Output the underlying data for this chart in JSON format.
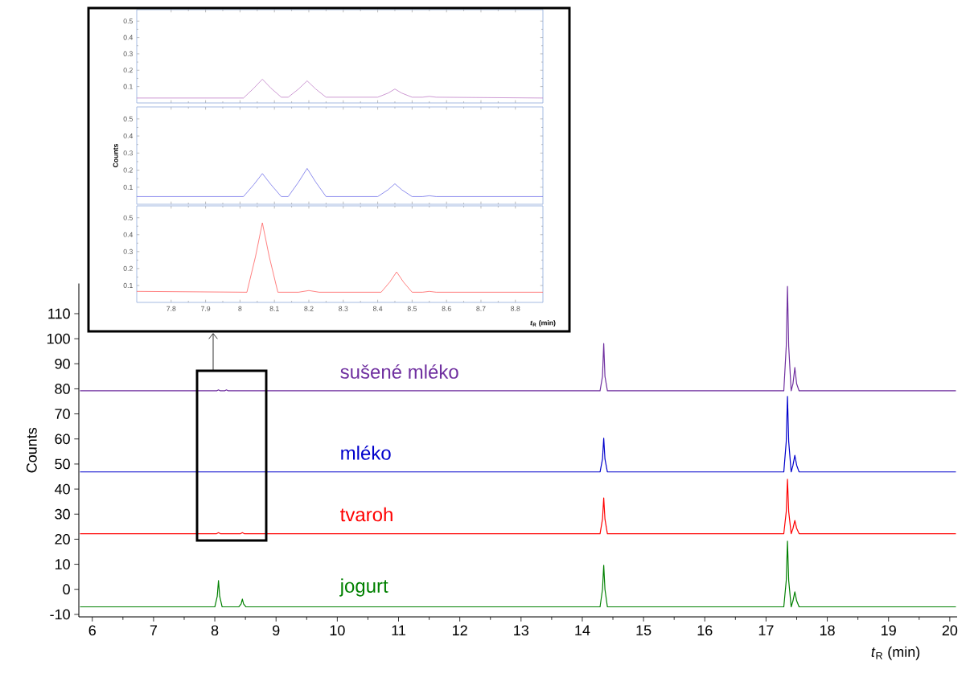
{
  "chart_data": [
    {
      "type": "line",
      "xlabel": "*t*$_{R}$ (min)",
      "ylabel": "Counts",
      "xlim": [
        5.78,
        20.12
      ],
      "ylim": [
        -11,
        122
      ],
      "xticks": [
        6,
        7,
        8,
        9,
        10,
        11,
        12,
        13,
        14,
        15,
        16,
        17,
        18,
        19,
        20
      ],
      "yticks": [
        -10,
        0,
        10,
        20,
        30,
        40,
        50,
        60,
        70,
        80,
        90,
        100,
        110
      ],
      "series": [
        {
          "name": "sušené mléko",
          "color": "#7030a0",
          "x": [
            5.8,
            8.03,
            8.06,
            8.09,
            8.16,
            8.19,
            8.22,
            14.29,
            14.33,
            14.35,
            14.37,
            14.41,
            17.29,
            17.33,
            17.35,
            17.37,
            17.41,
            17.44,
            17.47,
            17.5,
            17.54,
            20.1
          ],
          "values": [
            79.2,
            79.2,
            79.6,
            79.2,
            79.2,
            79.6,
            79.2,
            79.2,
            85,
            98.1,
            85,
            79.2,
            79.2,
            97,
            120.9,
            97,
            79.2,
            82,
            88.5,
            82,
            79.2,
            79.2
          ]
        },
        {
          "name": "mléko",
          "color": "#0000cc",
          "x": [
            5.8,
            14.29,
            14.33,
            14.35,
            14.37,
            14.41,
            17.29,
            17.33,
            17.35,
            17.37,
            17.41,
            17.44,
            17.47,
            17.5,
            17.54,
            20.1
          ],
          "values": [
            46.8,
            46.8,
            52,
            60.3,
            52,
            46.8,
            46.8,
            59,
            77.0,
            59,
            46.8,
            49.5,
            53.5,
            49.5,
            46.8,
            46.8
          ]
        },
        {
          "name": "tvaroh",
          "color": "#ff0000",
          "x": [
            5.8,
            8.03,
            8.06,
            8.09,
            8.42,
            8.45,
            8.48,
            14.29,
            14.33,
            14.35,
            14.37,
            14.41,
            17.29,
            17.33,
            17.35,
            17.37,
            17.41,
            17.44,
            17.47,
            17.5,
            17.54,
            20.1
          ],
          "values": [
            22.2,
            22.2,
            22.6,
            22.2,
            22.2,
            22.6,
            22.2,
            22.2,
            28,
            36.5,
            28,
            22.2,
            22.2,
            31,
            43.9,
            31,
            22.2,
            24.3,
            27.5,
            24.3,
            22.2,
            22.2
          ]
        },
        {
          "name": "jogurt",
          "color": "#008000",
          "x": [
            5.8,
            8.0,
            8.04,
            8.06,
            8.08,
            8.12,
            8.39,
            8.43,
            8.45,
            8.47,
            8.51,
            14.29,
            14.33,
            14.35,
            14.37,
            14.41,
            17.29,
            17.33,
            17.35,
            17.37,
            17.41,
            17.44,
            17.47,
            17.5,
            17.54,
            20.1
          ],
          "values": [
            -7,
            -7,
            -2.8,
            3.5,
            -2.8,
            -7,
            -7,
            -5.8,
            -3.9,
            -5.8,
            -7,
            -7,
            0,
            9.6,
            0,
            -7,
            -7,
            3.5,
            19.2,
            3.5,
            -7,
            -4.6,
            -1.0,
            -4.6,
            -7,
            -7
          ]
        }
      ]
    },
    {
      "type": "line",
      "xlim": [
        7.7,
        8.88
      ],
      "ylim": [
        0,
        0.57
      ],
      "xticks": [
        7.8,
        7.9,
        8,
        8.1,
        8.2,
        8.3,
        8.4,
        8.5,
        8.6,
        8.7,
        8.8
      ],
      "yticks": [
        0.1,
        0.2,
        0.3,
        0.4,
        0.5
      ],
      "tick_labels": "y",
      "series": [
        {
          "color": "#c080c8",
          "x": [
            7.7,
            8.01,
            8.04,
            8.065,
            8.09,
            8.12,
            8.14,
            8.17,
            8.195,
            8.22,
            8.25,
            8.4,
            8.43,
            8.45,
            8.47,
            8.5,
            8.53,
            8.55,
            8.57,
            8.88
          ],
          "values": [
            0.03,
            0.03,
            0.09,
            0.145,
            0.09,
            0.035,
            0.035,
            0.085,
            0.135,
            0.085,
            0.035,
            0.035,
            0.06,
            0.085,
            0.06,
            0.035,
            0.035,
            0.04,
            0.035,
            0.03
          ]
        }
      ]
    },
    {
      "type": "line",
      "ylabel": "Counts",
      "xlim": [
        7.7,
        8.88
      ],
      "ylim": [
        0,
        0.57
      ],
      "xticks": [
        7.8,
        7.9,
        8,
        8.1,
        8.2,
        8.3,
        8.4,
        8.5,
        8.6,
        8.7,
        8.8
      ],
      "yticks": [
        0.1,
        0.2,
        0.3,
        0.4,
        0.5
      ],
      "tick_labels": "y",
      "series": [
        {
          "color": "#7070e8",
          "x": [
            7.7,
            8.01,
            8.04,
            8.065,
            8.09,
            8.12,
            8.14,
            8.17,
            8.195,
            8.22,
            8.25,
            8.4,
            8.43,
            8.45,
            8.47,
            8.5,
            8.53,
            8.55,
            8.57,
            8.88
          ],
          "values": [
            0.045,
            0.045,
            0.115,
            0.18,
            0.115,
            0.045,
            0.045,
            0.13,
            0.21,
            0.13,
            0.045,
            0.045,
            0.085,
            0.12,
            0.085,
            0.045,
            0.045,
            0.05,
            0.045,
            0.045
          ]
        }
      ]
    },
    {
      "type": "line",
      "xlabel": "*t*$_{R}$ (min)",
      "xlim": [
        7.7,
        8.88
      ],
      "ylim": [
        0,
        0.57
      ],
      "xticks": [
        7.8,
        7.9,
        8,
        8.1,
        8.2,
        8.3,
        8.4,
        8.5,
        8.6,
        8.7,
        8.8
      ],
      "yticks": [
        0.1,
        0.2,
        0.3,
        0.4,
        0.5
      ],
      "series": [
        {
          "color": "#ff6060",
          "x": [
            7.7,
            8.02,
            8.045,
            8.065,
            8.085,
            8.11,
            8.17,
            8.2,
            8.23,
            8.41,
            8.435,
            8.455,
            8.475,
            8.5,
            8.53,
            8.55,
            8.57,
            8.88
          ],
          "values": [
            0.065,
            0.06,
            0.27,
            0.47,
            0.27,
            0.06,
            0.06,
            0.07,
            0.06,
            0.06,
            0.12,
            0.18,
            0.12,
            0.06,
            0.06,
            0.065,
            0.06,
            0.06
          ]
        }
      ]
    }
  ]
}
